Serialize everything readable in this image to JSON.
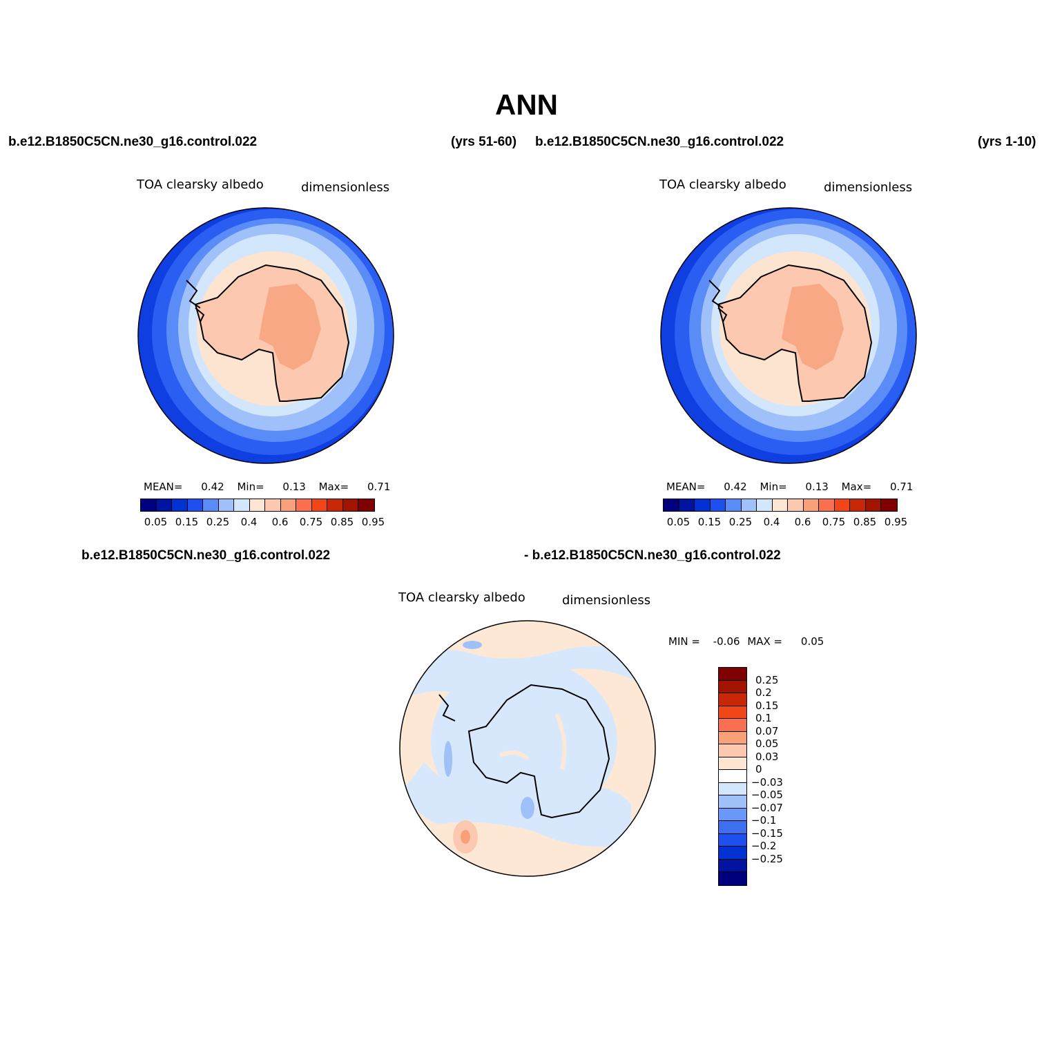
{
  "title": "ANN",
  "panels": [
    {
      "case": "b.e12.B1850C5CN.ne30_g16.control.022",
      "years": "(yrs 51-60)",
      "variable": "TOA clearsky albedo",
      "units": "dimensionless",
      "stats": {
        "mean_label": "MEAN=",
        "mean": "0.42",
        "min_label": "Min=",
        "min": "0.13",
        "max_label": "Max=",
        "max": "0.71"
      }
    },
    {
      "case": "b.e12.B1850C5CN.ne30_g16.control.022",
      "years": "(yrs 1-10)",
      "variable": "TOA clearsky albedo",
      "units": "dimensionless",
      "stats": {
        "mean_label": "MEAN=",
        "mean": "0.42",
        "min_label": "Min=",
        "min": "0.13",
        "max_label": "Max=",
        "max": "0.71"
      }
    }
  ],
  "colorbar": {
    "colors": [
      "#00007e",
      "#0014a0",
      "#0032d2",
      "#1e50f0",
      "#5a8cf8",
      "#a0c0fa",
      "#d2e6fc",
      "#ffe6d2",
      "#fcc8b0",
      "#f8a078",
      "#f87050",
      "#f04618",
      "#c82808",
      "#a01400",
      "#7e0000"
    ],
    "tick_labels": [
      "0.05",
      "0.15",
      "0.25",
      "0.4",
      "0.6",
      "0.75",
      "0.85",
      "0.95"
    ]
  },
  "difference": {
    "case_left": "b.e12.B1850C5CN.ne30_g16.control.022",
    "case_right": "- b.e12.B1850C5CN.ne30_g16.control.022",
    "variable": "TOA clearsky albedo",
    "units": "dimensionless",
    "min_label": "MIN =",
    "min": "-0.06",
    "max_label": "MAX =",
    "max": "0.05",
    "levels": [
      "0.25",
      "0.2",
      "0.15",
      "0.1",
      "0.07",
      "0.05",
      "0.03",
      "0",
      "-0.03",
      "-0.05",
      "-0.07",
      "-0.1",
      "-0.15",
      "-0.2",
      "-0.25"
    ],
    "colors": [
      "#7e0000",
      "#a01400",
      "#c82808",
      "#f04618",
      "#f87050",
      "#f8a078",
      "#fcc8b0",
      "#ffe6d2",
      "#ffffff",
      "#d2e6fc",
      "#a0c0fa",
      "#6a98f8",
      "#3c70f0",
      "#1e50f0",
      "#0032d2",
      "#0014a0",
      "#00007e"
    ]
  }
}
